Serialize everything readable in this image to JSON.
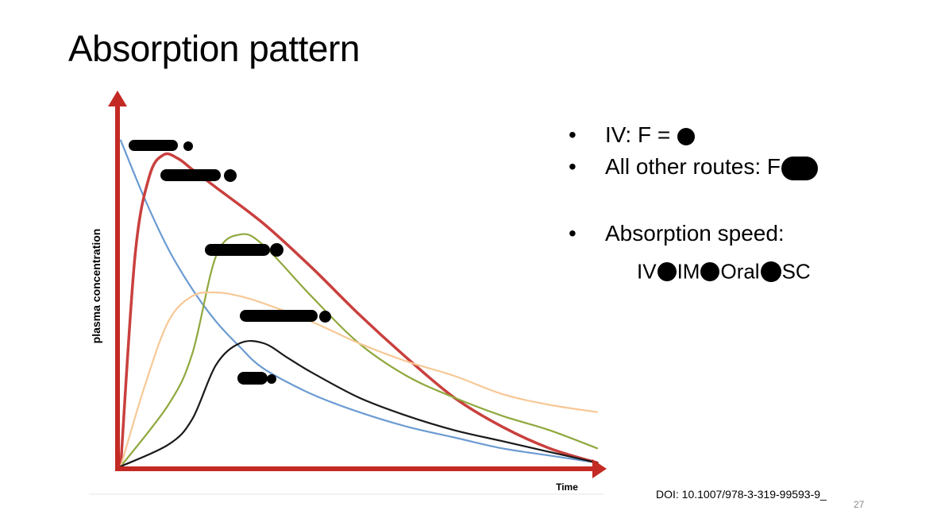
{
  "slide": {
    "title": "Absorption pattern",
    "page_number": "27",
    "doi": "DOI: 10.1007/978-3-319-99593-9_"
  },
  "bullets": [
    {
      "text": "IV: F ="
    },
    {
      "text": "All other routes: F"
    },
    {
      "text": "Absorption speed:"
    }
  ],
  "absorption_speed": [
    "IV",
    "IM",
    "Oral",
    "SC"
  ],
  "chart_data": {
    "type": "line",
    "xlabel": "Time",
    "ylabel": "plasma concentration",
    "xlim": [
      0,
      100
    ],
    "ylim": [
      0,
      100
    ],
    "grid": false,
    "series": [
      {
        "color": "#6b9bd2",
        "x": [
          0,
          5,
          10,
          15,
          20,
          25,
          30,
          40,
          50,
          60,
          70,
          80,
          90,
          100
        ],
        "y": [
          90,
          74,
          60,
          49,
          40,
          33,
          27,
          20,
          15,
          11,
          8,
          5,
          3,
          1
        ]
      },
      {
        "color": "#c9403e",
        "x": [
          0,
          3,
          6,
          9,
          12,
          15,
          20,
          30,
          40,
          50,
          60,
          70,
          80,
          90,
          100
        ],
        "y": [
          0,
          58,
          80,
          86,
          85,
          82,
          77,
          67,
          55,
          42,
          30,
          19,
          11,
          5,
          1
        ]
      },
      {
        "color": "#8fa83e",
        "x": [
          0,
          10,
          15,
          20,
          25,
          30,
          40,
          50,
          60,
          70,
          80,
          90,
          100
        ],
        "y": [
          0,
          17,
          31,
          58,
          64,
          61,
          47,
          34,
          25,
          19,
          14,
          10,
          5
        ]
      },
      {
        "color": "#f7c896",
        "x": [
          0,
          5,
          10,
          15,
          20,
          25,
          30,
          40,
          50,
          60,
          70,
          80,
          90,
          100
        ],
        "y": [
          0,
          22,
          40,
          47,
          48,
          47,
          45,
          40,
          34,
          29,
          25,
          20,
          17,
          15
        ]
      },
      {
        "color": "#1a1a1a",
        "x": [
          0,
          10,
          15,
          20,
          25,
          30,
          35,
          40,
          50,
          60,
          70,
          80,
          90,
          100
        ],
        "y": [
          0,
          6,
          13,
          28,
          34,
          34,
          30,
          26,
          19,
          14,
          10,
          7,
          4,
          1
        ]
      }
    ]
  }
}
